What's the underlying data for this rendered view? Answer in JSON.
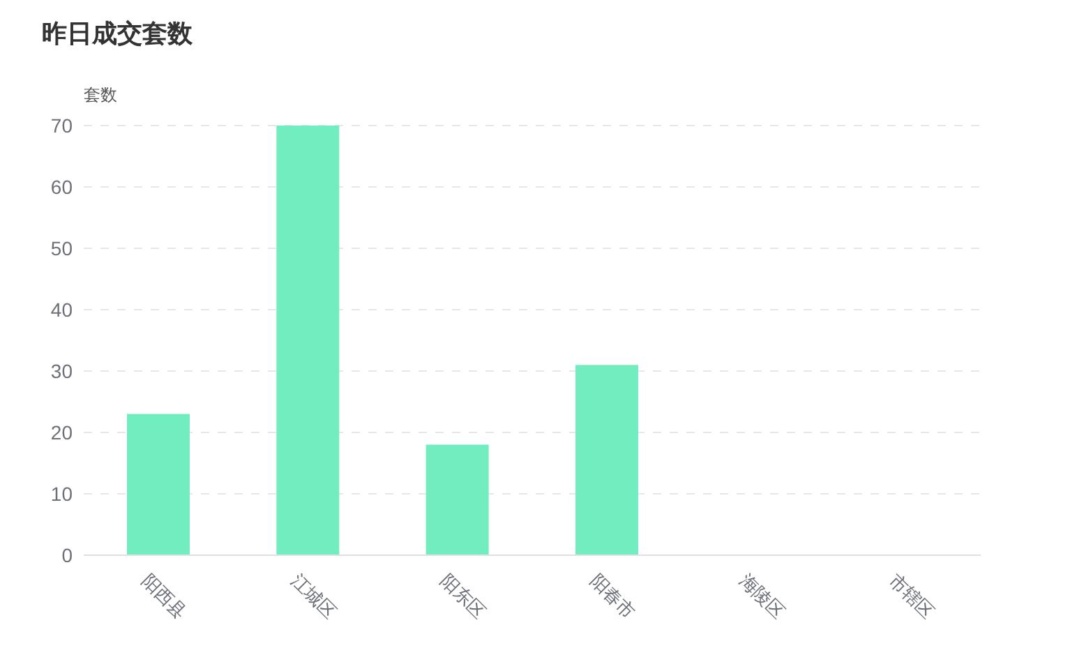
{
  "chart_data": {
    "type": "bar",
    "title": "昨日成交套数",
    "ylabel": "套数",
    "categories": [
      "阳西县",
      "江城区",
      "阳东区",
      "阳春市",
      "海陵区",
      "市辖区"
    ],
    "values": [
      23,
      70,
      18,
      31,
      0,
      0
    ],
    "color": "#72edbf",
    "ylim": [
      0,
      70
    ],
    "yticks": [
      0,
      10,
      20,
      30,
      40,
      50,
      60,
      70
    ],
    "grid": "y"
  }
}
